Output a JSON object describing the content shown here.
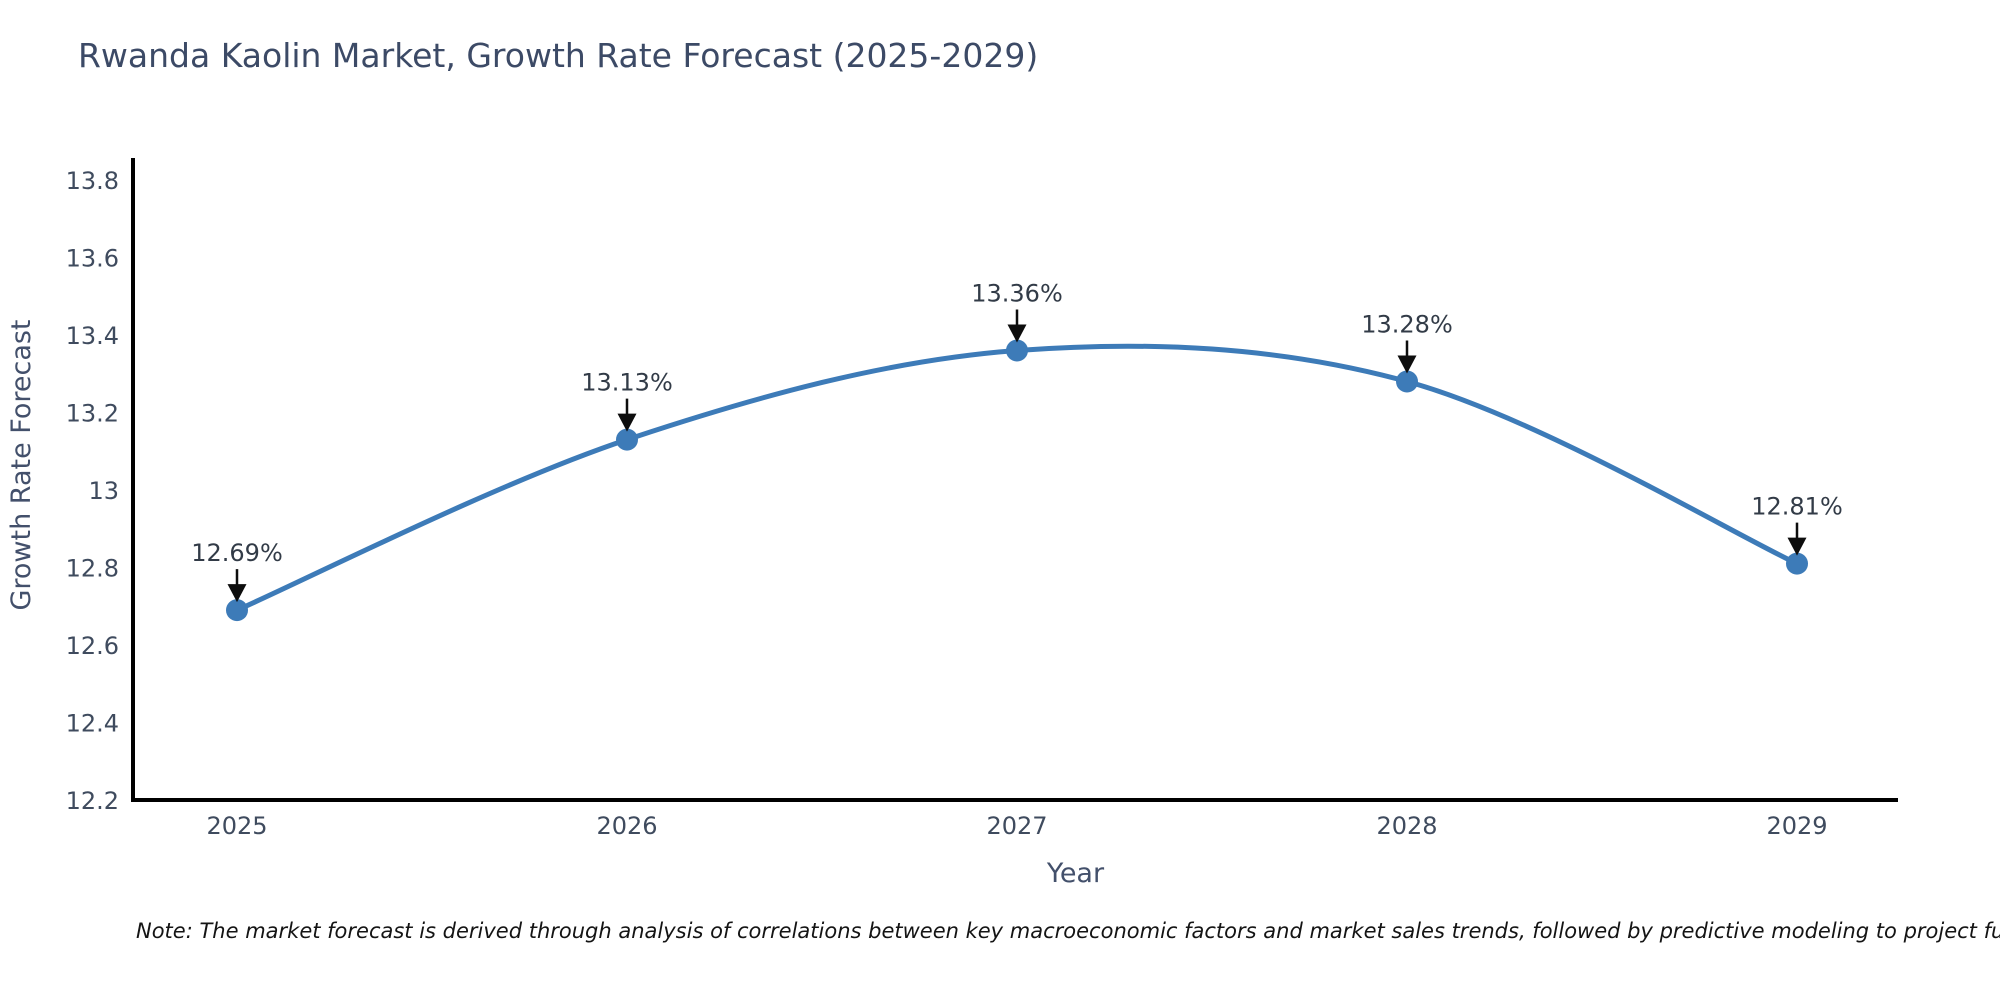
{
  "chart_data": {
    "type": "line",
    "title": "Rwanda Kaolin Market, Growth Rate Forecast (2025-2029)",
    "xlabel": "Year",
    "ylabel": "Growth Rate Forecast",
    "x": [
      2025,
      2026,
      2027,
      2028,
      2029
    ],
    "x_tick_labels": [
      "2025",
      "2026",
      "2027",
      "2028",
      "2029"
    ],
    "series": [
      {
        "name": "Growth Rate Forecast",
        "values": [
          12.69,
          13.13,
          13.36,
          13.28,
          12.81
        ],
        "point_labels": [
          "12.69%",
          "13.13%",
          "13.36%",
          "13.28%",
          "12.81%"
        ]
      }
    ],
    "y_ticks": [
      12.2,
      12.4,
      12.6,
      12.8,
      13,
      13.2,
      13.4,
      13.6,
      13.8
    ],
    "y_tick_labels": [
      "12.2",
      "12.4",
      "12.6",
      "12.8",
      "13",
      "13.2",
      "13.4",
      "13.6",
      "13.8"
    ],
    "ylim": [
      12.2,
      13.86
    ],
    "xlim": [
      2024.73,
      2029.26
    ],
    "grid": false,
    "legend": "none",
    "curve_style": "smooth-spline",
    "marker": "circle",
    "annotation_arrows": "down-to-point"
  },
  "note": "Note: The market forecast is derived through analysis of correlations between key macroeconomic factors and market sales trends, followed by predictive modeling to project future sales",
  "colors": {
    "line": "#3d7bb8",
    "marker": "#3d7bb8",
    "axis_spine": "#000000",
    "tick_label": "#3f4b5e",
    "title": "#3c4a66",
    "axis_title": "#43506b",
    "annotation_text": "#323b47",
    "arrow": "#0d0d0d",
    "note_text": "#141414",
    "background": "#ffffff"
  }
}
